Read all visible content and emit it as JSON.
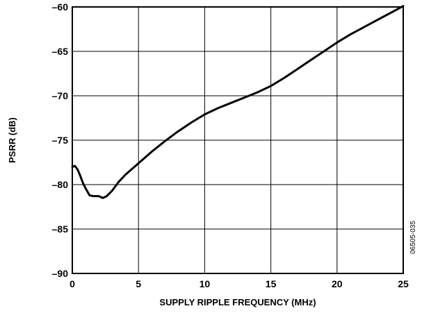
{
  "chart_data": {
    "type": "line",
    "title": "",
    "xlabel": "SUPPLY RIPPLE FREQUENCY (MHz)",
    "ylabel": "PSRR (dB)",
    "xlim": [
      0,
      25
    ],
    "ylim": [
      -90,
      -60
    ],
    "grid": true,
    "x_ticks": [
      0,
      5,
      10,
      15,
      20,
      25
    ],
    "x_tick_labels": [
      "0",
      "5",
      "10",
      "15",
      "20",
      "25"
    ],
    "y_ticks": [
      -90,
      -85,
      -80,
      -75,
      -70,
      -65,
      -60
    ],
    "y_tick_labels": [
      "–90",
      "–85",
      "–80",
      "–75",
      "–70",
      "–65",
      "–60"
    ],
    "figure_id": "06505-035",
    "colors": {
      "line": "#000000",
      "grid": "#000000",
      "background": "#ffffff"
    },
    "series": [
      {
        "x": [
          0.0,
          0.2,
          0.4,
          0.6,
          0.8,
          1.0,
          1.3,
          1.6,
          2.0,
          2.3,
          2.6,
          3.0,
          3.5,
          4.0,
          5.0,
          6.0,
          7.0,
          8.0,
          9.0,
          10.0,
          11.0,
          12.0,
          13.0,
          14.0,
          15.0,
          16.0,
          17.0,
          18.0,
          19.0,
          20.0,
          21.0,
          22.0,
          23.0,
          24.0,
          25.0
        ],
        "y": [
          -78.0,
          -77.9,
          -78.3,
          -79.0,
          -79.8,
          -80.4,
          -81.2,
          -81.3,
          -81.3,
          -81.5,
          -81.3,
          -80.7,
          -79.7,
          -78.9,
          -77.6,
          -76.3,
          -75.1,
          -74.0,
          -73.0,
          -72.1,
          -71.4,
          -70.8,
          -70.2,
          -69.6,
          -68.9,
          -68.0,
          -67.0,
          -66.0,
          -65.0,
          -64.0,
          -63.1,
          -62.3,
          -61.5,
          -60.7,
          -59.9
        ]
      }
    ]
  }
}
